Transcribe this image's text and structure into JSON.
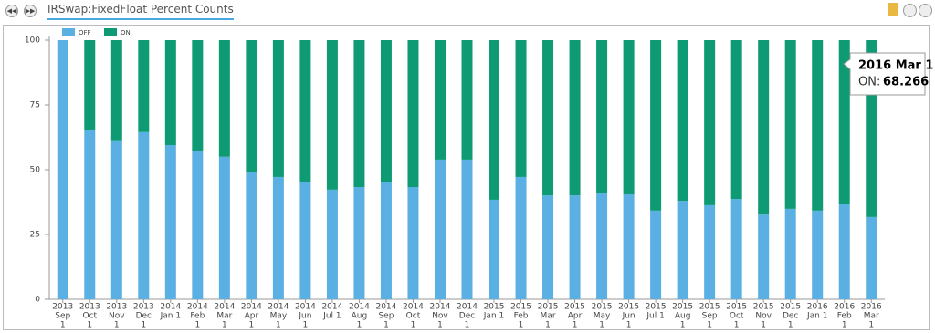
{
  "header": {
    "title": "IRSwap:FixedFloat Percent Counts"
  },
  "chart_data": {
    "type": "stacked_bar",
    "categories": [
      [
        "2013",
        "Sep",
        "1"
      ],
      [
        "2013",
        "Oct",
        "1"
      ],
      [
        "2013",
        "Nov",
        "1"
      ],
      [
        "2013",
        "Dec",
        "1"
      ],
      [
        "2014",
        "Jan 1"
      ],
      [
        "2014",
        "Feb",
        "1"
      ],
      [
        "2014",
        "Mar",
        "1"
      ],
      [
        "2014",
        "Apr",
        "1"
      ],
      [
        "2014",
        "May",
        "1"
      ],
      [
        "2014",
        "Jun",
        "1"
      ],
      [
        "2014",
        "Jul 1"
      ],
      [
        "2014",
        "Aug",
        "1"
      ],
      [
        "2014",
        "Sep",
        "1"
      ],
      [
        "2014",
        "Oct",
        "1"
      ],
      [
        "2014",
        "Nov",
        "1"
      ],
      [
        "2014",
        "Dec",
        "1"
      ],
      [
        "2015",
        "Jan 1"
      ],
      [
        "2015",
        "Feb",
        "1"
      ],
      [
        "2015",
        "Mar",
        "1"
      ],
      [
        "2015",
        "Apr",
        "1"
      ],
      [
        "2015",
        "May",
        "1"
      ],
      [
        "2015",
        "Jun",
        "1"
      ],
      [
        "2015",
        "Jul 1"
      ],
      [
        "2015",
        "Aug",
        "1"
      ],
      [
        "2015",
        "Sep",
        "1"
      ],
      [
        "2015",
        "Oct",
        "1"
      ],
      [
        "2015",
        "Nov",
        "1"
      ],
      [
        "2015",
        "Dec",
        "1"
      ],
      [
        "2016",
        "Jan 1"
      ],
      [
        "2016",
        "Feb",
        "1"
      ],
      [
        "2016",
        "Mar",
        "1"
      ]
    ],
    "series": [
      {
        "name": "OFF",
        "color": "#5aafe3",
        "values": [
          100,
          65.5,
          61,
          64.5,
          59.5,
          57.4,
          55,
          49.3,
          47.2,
          45.4,
          42.3,
          43.3,
          45.4,
          43.3,
          53.9,
          53.9,
          38.4,
          47.2,
          40.1,
          40.1,
          40.8,
          40.5,
          34.2,
          38,
          36.3,
          38.7,
          32.7,
          34.9,
          34.2,
          36.6,
          31.734
        ]
      },
      {
        "name": "ON",
        "color": "#0e9b73",
        "values": [
          0,
          34.5,
          39,
          35.5,
          40.5,
          42.6,
          45,
          50.7,
          52.8,
          54.6,
          57.7,
          56.7,
          54.6,
          56.7,
          46.1,
          46.1,
          61.6,
          52.8,
          59.9,
          59.9,
          59.2,
          59.5,
          65.8,
          62,
          63.7,
          61.3,
          67.3,
          65.1,
          65.8,
          63.4,
          68.266
        ]
      }
    ],
    "ylim": [
      0,
      100
    ],
    "yticks": [
      0,
      25,
      50,
      75,
      100
    ],
    "tooltip": {
      "title": "2016 Mar 1",
      "label": "ON:",
      "series": 1,
      "index": 30
    }
  }
}
